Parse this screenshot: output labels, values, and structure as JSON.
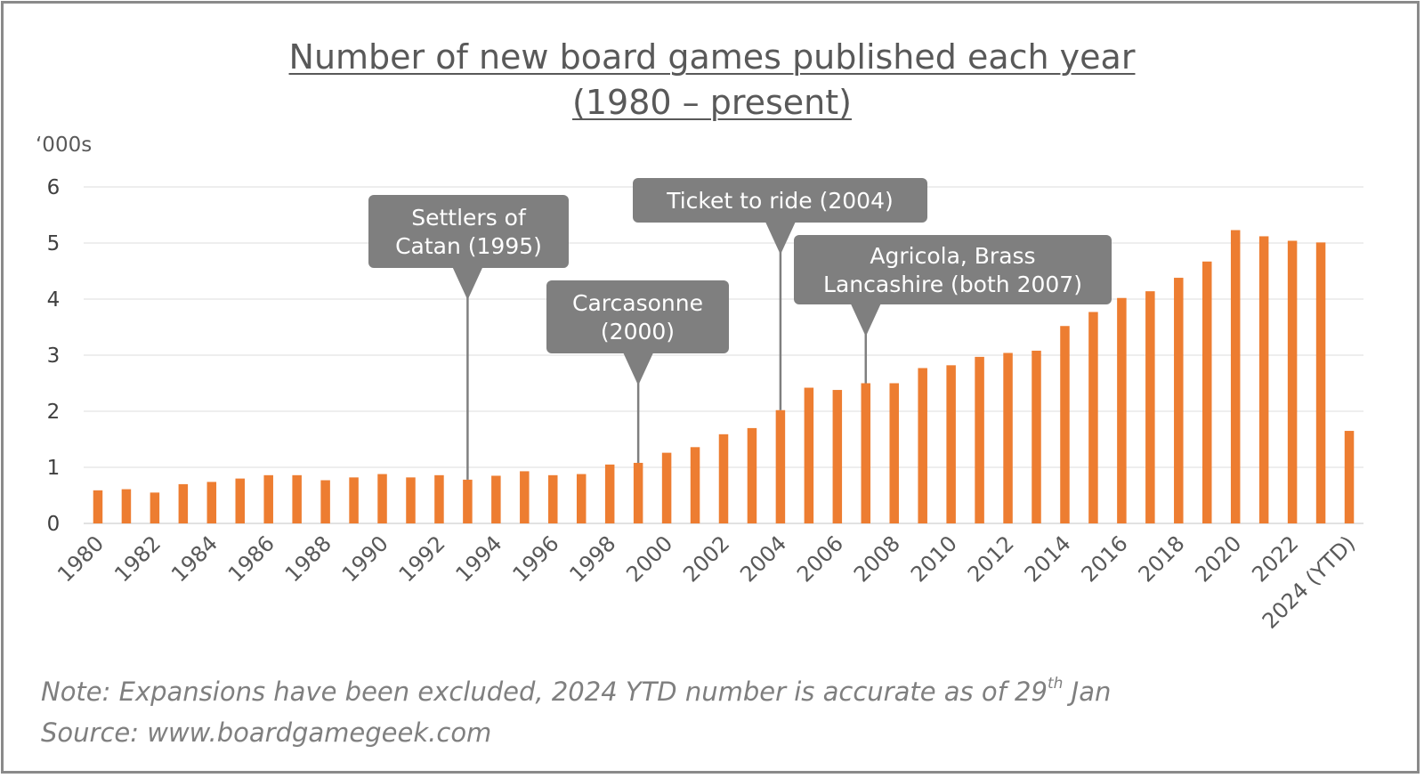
{
  "chart_data": {
    "type": "bar",
    "title_line1": "Number of new board games published each year",
    "title_line2": "(1980 – present)",
    "ylabel": "‘000s",
    "ylim": [
      0,
      6
    ],
    "yticks": [
      0,
      1,
      2,
      3,
      4,
      5,
      6
    ],
    "grid": true,
    "bar_color": "#ED7D31",
    "callout_color": "#7F7F7F",
    "categories": [
      "1980",
      "1981",
      "1982",
      "1983",
      "1984",
      "1985",
      "1986",
      "1987",
      "1988",
      "1989",
      "1990",
      "1991",
      "1992",
      "1993",
      "1994",
      "1995",
      "1996",
      "1997",
      "1998",
      "1999",
      "2000",
      "2001",
      "2002",
      "2003",
      "2004",
      "2005",
      "2006",
      "2007",
      "2008",
      "2009",
      "2010",
      "2011",
      "2012",
      "2013",
      "2014",
      "2015",
      "2016",
      "2017",
      "2018",
      "2019",
      "2020",
      "2021",
      "2022",
      "2023",
      "2024 (YTD)"
    ],
    "tick_labels": [
      "1980",
      "1982",
      "1984",
      "1986",
      "1988",
      "1990",
      "1992",
      "1994",
      "1996",
      "1998",
      "2000",
      "2002",
      "2004",
      "2006",
      "2008",
      "2010",
      "2012",
      "2014",
      "2016",
      "2018",
      "2020",
      "2022",
      "2024 (YTD)"
    ],
    "values": [
      0.59,
      0.61,
      0.55,
      0.7,
      0.74,
      0.8,
      0.86,
      0.86,
      0.77,
      0.82,
      0.88,
      0.82,
      0.86,
      0.78,
      0.85,
      0.93,
      0.86,
      0.88,
      1.05,
      1.08,
      1.26,
      1.36,
      1.59,
      1.7,
      2.02,
      2.42,
      2.38,
      2.5,
      2.5,
      2.77,
      2.82,
      2.97,
      3.04,
      3.08,
      3.52,
      3.77,
      4.02,
      4.14,
      4.38,
      4.67,
      5.23,
      5.12,
      5.04,
      5.01,
      1.65
    ],
    "annotations": [
      {
        "lines": [
          "Settlers of",
          "Catan (1995)"
        ],
        "category": "1993"
      },
      {
        "lines": [
          "Carcasonne",
          "(2000)"
        ],
        "category": "1999"
      },
      {
        "lines": [
          "Ticket to ride (2004)"
        ],
        "category": "2004"
      },
      {
        "lines": [
          "Agricola, Brass",
          "Lancashire (both 2007)"
        ],
        "category": "2007"
      }
    ]
  },
  "note": {
    "text_before": "Note: Expansions have been excluded, 2024 YTD number is accurate as of 29",
    "superscript": "th",
    "text_after": " Jan",
    "source": "Source: www.boardgamegeek.com"
  }
}
